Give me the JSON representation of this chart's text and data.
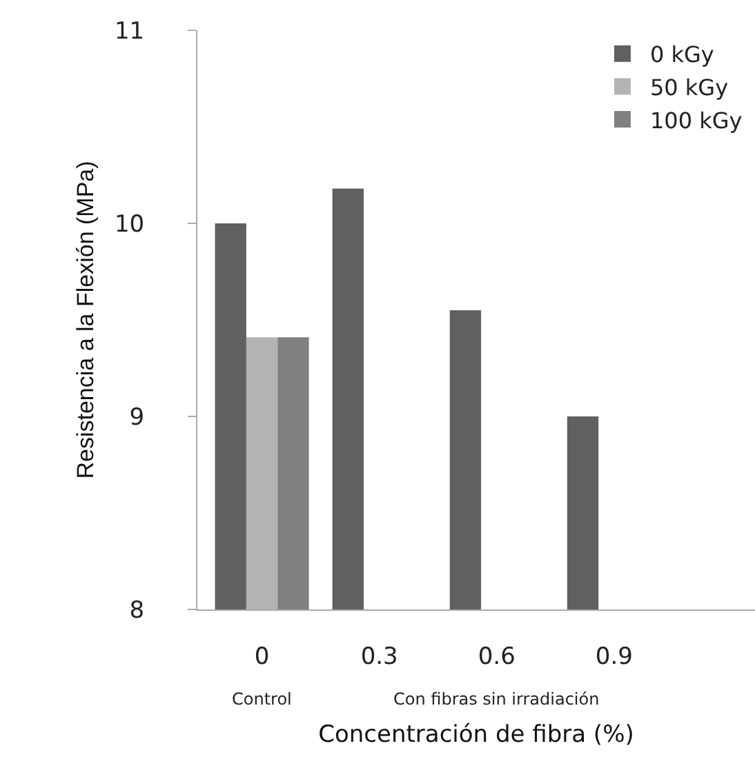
{
  "chart_data": {
    "type": "bar",
    "xlabel": "Concentración de fibra (%)",
    "ylabel": "Resistencia a la Flexión (MPa)",
    "categories": [
      "0",
      "0.3",
      "0.6",
      "0.9"
    ],
    "series": [
      {
        "name": "0 kGy",
        "color": "#606060",
        "values": [
          10.0,
          10.18,
          9.55,
          9.0
        ]
      },
      {
        "name": "50 kGy",
        "color": "#b3b3b3",
        "values": [
          9.41,
          null,
          null,
          null
        ]
      },
      {
        "name": "100 kGy",
        "color": "#808080",
        "values": [
          9.41,
          null,
          null,
          null
        ]
      }
    ],
    "ylim": [
      8,
      11
    ],
    "yticks": [
      8,
      9,
      10,
      11
    ],
    "legend": "top right",
    "annotations": [
      "Control",
      "Con fibras sin irradiación"
    ]
  }
}
